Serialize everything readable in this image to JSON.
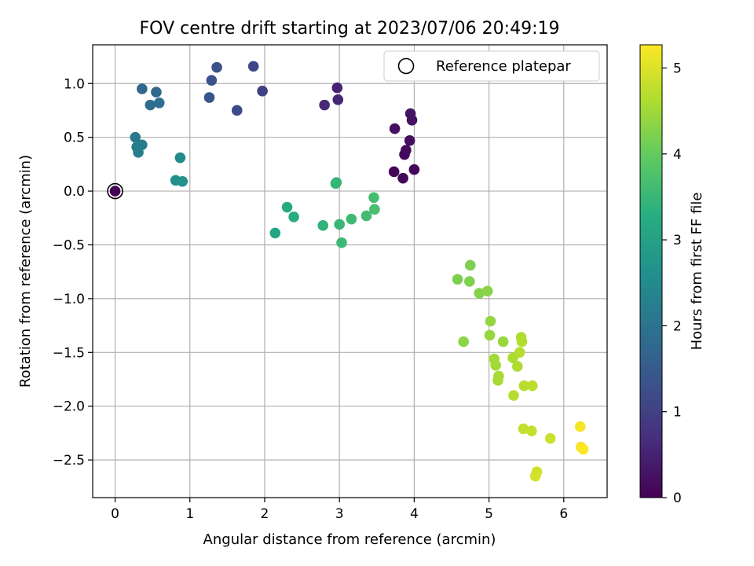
{
  "chart_data": {
    "type": "scatter",
    "title": "FOV centre drift starting at 2023/07/06 20:49:19",
    "xlabel": "Angular distance from reference (arcmin)",
    "ylabel": "Rotation from reference (arcmin)",
    "xlim": [
      -0.3,
      6.58
    ],
    "ylim": [
      -2.85,
      1.36
    ],
    "xticks": [
      0,
      1,
      2,
      3,
      4,
      5,
      6
    ],
    "yticks": [
      -2.5,
      -2.0,
      -1.5,
      -1.0,
      -0.5,
      0.0,
      0.5,
      1.0
    ],
    "xtick_labels": [
      "0",
      "1",
      "2",
      "3",
      "4",
      "5",
      "6"
    ],
    "ytick_labels": [
      "−2.5",
      "−2.0",
      "−1.5",
      "−1.0",
      "−0.5",
      "0.0",
      "0.5",
      "1.0"
    ],
    "grid": true,
    "legend": {
      "placement": "top-right",
      "entries": [
        "Reference platepar"
      ]
    },
    "reference_point": {
      "x": 0,
      "y": 0,
      "c": 0.0
    },
    "colorbar": {
      "label": "Hours from first FF file",
      "range": [
        0,
        5.27
      ],
      "ticks": [
        0,
        1,
        2,
        3,
        4,
        5
      ],
      "tick_labels": [
        "0",
        "1",
        "2",
        "3",
        "4",
        "5"
      ],
      "colormap": "viridis"
    },
    "points": [
      {
        "x": 3.73,
        "y": 0.18,
        "c": 0.05
      },
      {
        "x": 3.85,
        "y": 0.12,
        "c": 0.08
      },
      {
        "x": 4.0,
        "y": 0.2,
        "c": 0.1
      },
      {
        "x": 3.87,
        "y": 0.34,
        "c": 0.12
      },
      {
        "x": 3.89,
        "y": 0.38,
        "c": 0.15
      },
      {
        "x": 3.94,
        "y": 0.47,
        "c": 0.18
      },
      {
        "x": 3.74,
        "y": 0.58,
        "c": 0.22
      },
      {
        "x": 3.97,
        "y": 0.66,
        "c": 0.25
      },
      {
        "x": 3.95,
        "y": 0.72,
        "c": 0.28
      },
      {
        "x": 2.97,
        "y": 0.96,
        "c": 0.5
      },
      {
        "x": 2.98,
        "y": 0.85,
        "c": 0.55
      },
      {
        "x": 2.8,
        "y": 0.8,
        "c": 0.6
      },
      {
        "x": 1.97,
        "y": 0.93,
        "c": 1.0
      },
      {
        "x": 1.85,
        "y": 1.16,
        "c": 1.1
      },
      {
        "x": 1.63,
        "y": 0.75,
        "c": 1.2
      },
      {
        "x": 1.36,
        "y": 1.15,
        "c": 1.3
      },
      {
        "x": 1.29,
        "y": 1.03,
        "c": 1.35
      },
      {
        "x": 1.26,
        "y": 0.87,
        "c": 1.4
      },
      {
        "x": 0.36,
        "y": 0.95,
        "c": 1.75
      },
      {
        "x": 0.55,
        "y": 0.92,
        "c": 1.8
      },
      {
        "x": 0.47,
        "y": 0.8,
        "c": 1.85
      },
      {
        "x": 0.59,
        "y": 0.82,
        "c": 1.9
      },
      {
        "x": 0.27,
        "y": 0.5,
        "c": 2.1
      },
      {
        "x": 0.29,
        "y": 0.41,
        "c": 2.15
      },
      {
        "x": 0.36,
        "y": 0.43,
        "c": 2.2
      },
      {
        "x": 0.31,
        "y": 0.36,
        "c": 2.25
      },
      {
        "x": 0.87,
        "y": 0.31,
        "c": 2.5
      },
      {
        "x": 0.81,
        "y": 0.1,
        "c": 2.6
      },
      {
        "x": 0.9,
        "y": 0.09,
        "c": 2.65
      },
      {
        "x": 2.14,
        "y": -0.39,
        "c": 3.1
      },
      {
        "x": 2.3,
        "y": -0.15,
        "c": 3.2
      },
      {
        "x": 2.39,
        "y": -0.24,
        "c": 3.25
      },
      {
        "x": 2.78,
        "y": -0.32,
        "c": 3.4
      },
      {
        "x": 2.95,
        "y": 0.07,
        "c": 3.45
      },
      {
        "x": 2.96,
        "y": 0.08,
        "c": 3.46
      },
      {
        "x": 3.0,
        "y": -0.31,
        "c": 3.5
      },
      {
        "x": 3.03,
        "y": -0.48,
        "c": 3.55
      },
      {
        "x": 3.16,
        "y": -0.26,
        "c": 3.58
      },
      {
        "x": 3.36,
        "y": -0.23,
        "c": 3.62
      },
      {
        "x": 3.46,
        "y": -0.06,
        "c": 3.65
      },
      {
        "x": 3.47,
        "y": -0.17,
        "c": 3.68
      },
      {
        "x": 4.58,
        "y": -0.82,
        "c": 4.2
      },
      {
        "x": 4.75,
        "y": -0.69,
        "c": 4.22
      },
      {
        "x": 4.74,
        "y": -0.84,
        "c": 4.24
      },
      {
        "x": 4.87,
        "y": -0.95,
        "c": 4.28
      },
      {
        "x": 4.98,
        "y": -0.93,
        "c": 4.3
      },
      {
        "x": 4.66,
        "y": -1.4,
        "c": 4.32
      },
      {
        "x": 5.02,
        "y": -1.21,
        "c": 4.4
      },
      {
        "x": 5.01,
        "y": -1.34,
        "c": 4.42
      },
      {
        "x": 5.19,
        "y": -1.4,
        "c": 4.45
      },
      {
        "x": 5.07,
        "y": -1.56,
        "c": 4.5
      },
      {
        "x": 5.09,
        "y": -1.62,
        "c": 4.52
      },
      {
        "x": 5.12,
        "y": -1.76,
        "c": 4.55
      },
      {
        "x": 5.13,
        "y": -1.72,
        "c": 4.56
      },
      {
        "x": 5.32,
        "y": -1.55,
        "c": 4.6
      },
      {
        "x": 5.38,
        "y": -1.63,
        "c": 4.62
      },
      {
        "x": 5.43,
        "y": -1.36,
        "c": 4.64
      },
      {
        "x": 5.44,
        "y": -1.4,
        "c": 4.65
      },
      {
        "x": 5.41,
        "y": -1.5,
        "c": 4.66
      },
      {
        "x": 5.33,
        "y": -1.9,
        "c": 4.68
      },
      {
        "x": 5.47,
        "y": -1.81,
        "c": 4.7
      },
      {
        "x": 5.58,
        "y": -1.81,
        "c": 4.72
      },
      {
        "x": 5.46,
        "y": -2.21,
        "c": 4.8
      },
      {
        "x": 5.57,
        "y": -2.23,
        "c": 4.82
      },
      {
        "x": 5.82,
        "y": -2.3,
        "c": 4.85
      },
      {
        "x": 5.64,
        "y": -2.61,
        "c": 4.9
      },
      {
        "x": 5.62,
        "y": -2.65,
        "c": 4.92
      },
      {
        "x": 6.22,
        "y": -2.19,
        "c": 5.2
      },
      {
        "x": 6.23,
        "y": -2.38,
        "c": 5.22
      },
      {
        "x": 6.26,
        "y": -2.4,
        "c": 5.25
      }
    ]
  }
}
